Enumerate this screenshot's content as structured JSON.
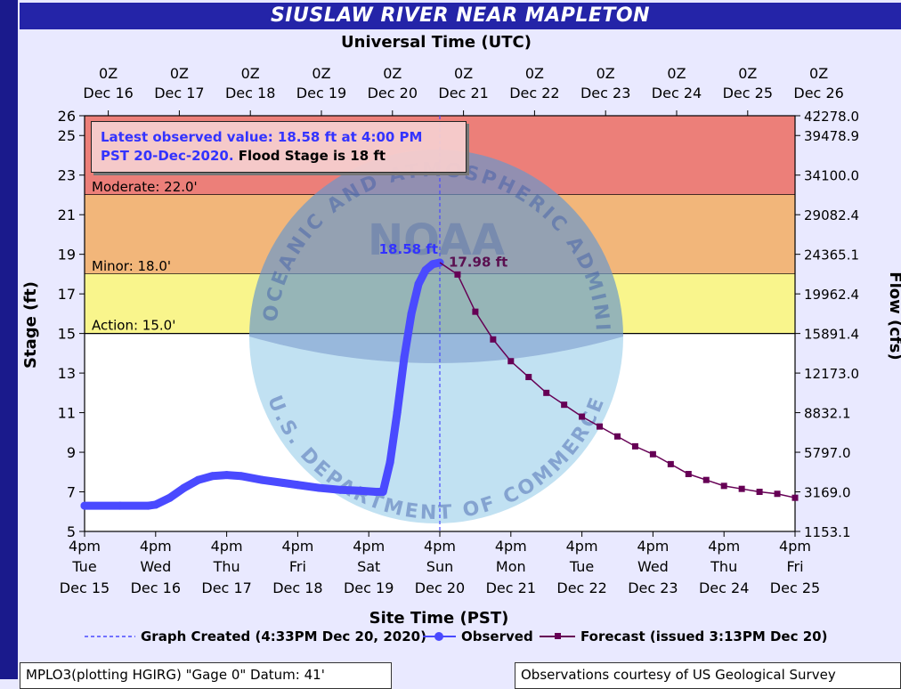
{
  "title": "SIUSLAW RIVER NEAR MAPLETON",
  "chart_data": {
    "type": "line",
    "top_axis_title": "Universal Time (UTC)",
    "bottom_axis_title": "Site Time (PST)",
    "ylabel": "Stage (ft)",
    "y2label": "Flow (cfs)",
    "ylim": [
      5,
      26
    ],
    "y_ticks": [
      5,
      7,
      9,
      11,
      13,
      15,
      17,
      19,
      21,
      23,
      25,
      26
    ],
    "flow_ticks": [
      {
        "stage": 5,
        "label": "1153.1"
      },
      {
        "stage": 7,
        "label": "3169.0"
      },
      {
        "stage": 9,
        "label": "5797.0"
      },
      {
        "stage": 11,
        "label": "8832.1"
      },
      {
        "stage": 13,
        "label": "12173.0"
      },
      {
        "stage": 15,
        "label": "15891.4"
      },
      {
        "stage": 17,
        "label": "19962.4"
      },
      {
        "stage": 19,
        "label": "24365.1"
      },
      {
        "stage": 21,
        "label": "29082.4"
      },
      {
        "stage": 23,
        "label": "34100.0"
      },
      {
        "stage": 25,
        "label": "39478.9"
      },
      {
        "stage": 26,
        "label": "42278.0"
      }
    ],
    "top_ticks": [
      {
        "line1": "0Z",
        "line2": "Dec 16"
      },
      {
        "line1": "0Z",
        "line2": "Dec 17"
      },
      {
        "line1": "0Z",
        "line2": "Dec 18"
      },
      {
        "line1": "0Z",
        "line2": "Dec 19"
      },
      {
        "line1": "0Z",
        "line2": "Dec 20"
      },
      {
        "line1": "0Z",
        "line2": "Dec 21"
      },
      {
        "line1": "0Z",
        "line2": "Dec 22"
      },
      {
        "line1": "0Z",
        "line2": "Dec 23"
      },
      {
        "line1": "0Z",
        "line2": "Dec 24"
      },
      {
        "line1": "0Z",
        "line2": "Dec 25"
      },
      {
        "line1": "0Z",
        "line2": "Dec 26"
      }
    ],
    "bottom_ticks": [
      {
        "line1": "4pm",
        "line2": "Tue",
        "line3": "Dec 15"
      },
      {
        "line1": "4pm",
        "line2": "Wed",
        "line3": "Dec 16"
      },
      {
        "line1": "4pm",
        "line2": "Thu",
        "line3": "Dec 17"
      },
      {
        "line1": "4pm",
        "line2": "Fri",
        "line3": "Dec 18"
      },
      {
        "line1": "4pm",
        "line2": "Sat",
        "line3": "Dec 19"
      },
      {
        "line1": "4pm",
        "line2": "Sun",
        "line3": "Dec 20"
      },
      {
        "line1": "4pm",
        "line2": "Mon",
        "line3": "Dec 21"
      },
      {
        "line1": "4pm",
        "line2": "Tue",
        "line3": "Dec 22"
      },
      {
        "line1": "4pm",
        "line2": "Wed",
        "line3": "Dec 23"
      },
      {
        "line1": "4pm",
        "line2": "Thu",
        "line3": "Dec 24"
      },
      {
        "line1": "4pm",
        "line2": "Fri",
        "line3": "Dec 25"
      }
    ],
    "flood_bands": [
      {
        "name": "Moderate",
        "label": "Moderate: 22.0'",
        "from": 22,
        "to": 26,
        "color": "#ec7f79"
      },
      {
        "name": "Minor",
        "label": "Minor: 18.0'",
        "from": 18,
        "to": 22,
        "color": "#f2b67a"
      },
      {
        "name": "Action",
        "label": "Action: 15.0'",
        "from": 15,
        "to": 18,
        "color": "#f9f58c"
      }
    ],
    "series": [
      {
        "name": "Observed",
        "color": "#4a4aff",
        "points": [
          [
            0.0,
            6.3
          ],
          [
            0.5,
            6.3
          ],
          [
            0.9,
            6.3
          ],
          [
            1.0,
            6.35
          ],
          [
            1.2,
            6.7
          ],
          [
            1.4,
            7.2
          ],
          [
            1.6,
            7.6
          ],
          [
            1.8,
            7.8
          ],
          [
            2.0,
            7.85
          ],
          [
            2.2,
            7.8
          ],
          [
            2.5,
            7.6
          ],
          [
            2.8,
            7.45
          ],
          [
            3.0,
            7.35
          ],
          [
            3.3,
            7.2
          ],
          [
            3.6,
            7.1
          ],
          [
            3.9,
            7.05
          ],
          [
            4.1,
            7.0
          ],
          [
            4.2,
            7.0
          ],
          [
            4.3,
            8.5
          ],
          [
            4.4,
            11.0
          ],
          [
            4.5,
            13.8
          ],
          [
            4.6,
            16.0
          ],
          [
            4.7,
            17.5
          ],
          [
            4.8,
            18.2
          ],
          [
            4.9,
            18.5
          ],
          [
            5.0,
            18.58
          ]
        ]
      },
      {
        "name": "Forecast",
        "color": "#660055",
        "points": [
          [
            5.0,
            18.58
          ],
          [
            5.25,
            17.98
          ],
          [
            5.5,
            16.1
          ],
          [
            5.75,
            14.7
          ],
          [
            6.0,
            13.6
          ],
          [
            6.25,
            12.8
          ],
          [
            6.5,
            12.0
          ],
          [
            6.75,
            11.4
          ],
          [
            7.0,
            10.8
          ],
          [
            7.25,
            10.3
          ],
          [
            7.5,
            9.8
          ],
          [
            7.75,
            9.3
          ],
          [
            8.0,
            8.9
          ],
          [
            8.25,
            8.4
          ],
          [
            8.5,
            7.9
          ],
          [
            8.75,
            7.6
          ],
          [
            9.0,
            7.3
          ],
          [
            9.25,
            7.15
          ],
          [
            9.5,
            7.0
          ],
          [
            9.75,
            6.9
          ],
          [
            10.0,
            6.7
          ]
        ]
      }
    ],
    "point_labels": [
      {
        "x": 5.0,
        "y": 18.58,
        "text": "18.58 ft",
        "series": "Observed"
      },
      {
        "x": 5.25,
        "y": 17.98,
        "text": "17.98 ft",
        "series": "Forecast"
      }
    ],
    "created_line_x": 5.0,
    "annotation": {
      "line1": "Latest observed value: 18.58 ft at 4:00 PM",
      "line2a": "PST 20-Dec-2020.",
      "line2b": "Flood Stage is 18 ft"
    },
    "legend": {
      "created": "Graph Created (4:33PM Dec 20, 2020)",
      "observed": "Observed",
      "forecast": "Forecast (issued 3:13PM Dec 20)"
    },
    "grid": false
  },
  "footer": {
    "left": "MPLO3(plotting HGIRG) \"Gage 0\" Datum: 41'",
    "right": "Observations courtesy of US Geological Survey"
  },
  "watermark": {
    "ring_text_top": "NATIONAL OCEANIC AND ATMOSPHERIC ADMINISTRATION",
    "ring_text_bottom": "U.S. DEPARTMENT OF COMMERCE",
    "logo": "NOAA"
  }
}
